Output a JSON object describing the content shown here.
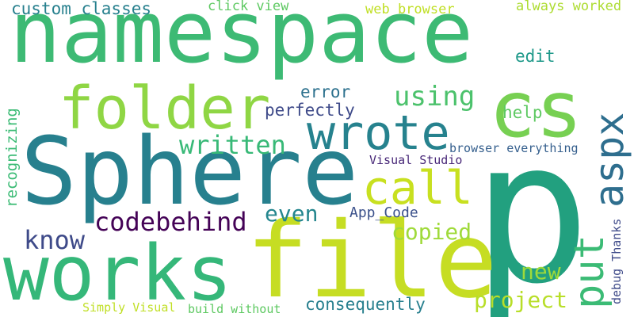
{
  "words": {
    "namespace": {
      "text": "namespace",
      "color": "#3dba74"
    },
    "p": {
      "text": "p",
      "color": "#22a07f"
    },
    "sphere": {
      "text": "Sphere",
      "color": "#27808e"
    },
    "file": {
      "text": "file",
      "color": "#c6dd23"
    },
    "works": {
      "text": "works",
      "color": "#35b779"
    },
    "cs": {
      "text": "cs",
      "color": "#77d052"
    },
    "folder": {
      "text": "folder",
      "color": "#8fd644"
    },
    "wrote": {
      "text": "wrote",
      "color": "#26828e"
    },
    "aspx": {
      "text": "aspx",
      "color": "#2e6e8e"
    },
    "call": {
      "text": "call",
      "color": "#c8e020"
    },
    "put": {
      "text": "put",
      "color": "#3bbb75"
    },
    "codebehind": {
      "text": "codebehind",
      "color": "#440256"
    },
    "written": {
      "text": "written",
      "color": "#38b977"
    },
    "using": {
      "text": "using",
      "color": "#4cc26c"
    },
    "project": {
      "text": "project",
      "color": "#b8de29"
    },
    "copied": {
      "text": "copied",
      "color": "#9fda3a"
    },
    "know": {
      "text": "know",
      "color": "#3e4a89"
    },
    "new": {
      "text": "new",
      "color": "#9fda3a"
    },
    "even": {
      "text": "even",
      "color": "#24868e"
    },
    "consequently": {
      "text": "consequently",
      "color": "#277f8e"
    },
    "custom_classes": {
      "text": "custom classes",
      "color": "#27808e"
    },
    "click_view": {
      "text": "click view",
      "color": "#5ec962"
    },
    "web_browser": {
      "text": "web browser",
      "color": "#c0df25"
    },
    "always_worked": {
      "text": "always worked",
      "color": "#addc30"
    },
    "edit": {
      "text": "edit",
      "color": "#1f998a"
    },
    "error": {
      "text": "error",
      "color": "#2d718e"
    },
    "perfectly": {
      "text": "perfectly",
      "color": "#3e4a89"
    },
    "help": {
      "text": "help",
      "color": "#5ec962"
    },
    "browser_everything": {
      "text": "browser everything",
      "color": "#355f8d"
    },
    "visual_studio": {
      "text": "Visual Studio",
      "color": "#482878"
    },
    "app_code": {
      "text": "App_Code",
      "color": "#3b518b"
    },
    "recognizing": {
      "text": "recognizing",
      "color": "#3bbb75"
    },
    "debug_thanks": {
      "text": "debug Thanks",
      "color": "#3e4a89"
    },
    "simply_visual": {
      "text": "Simply Visual",
      "color": "#c0df25"
    },
    "build_without": {
      "text": "build without",
      "color": "#5ec962"
    }
  }
}
